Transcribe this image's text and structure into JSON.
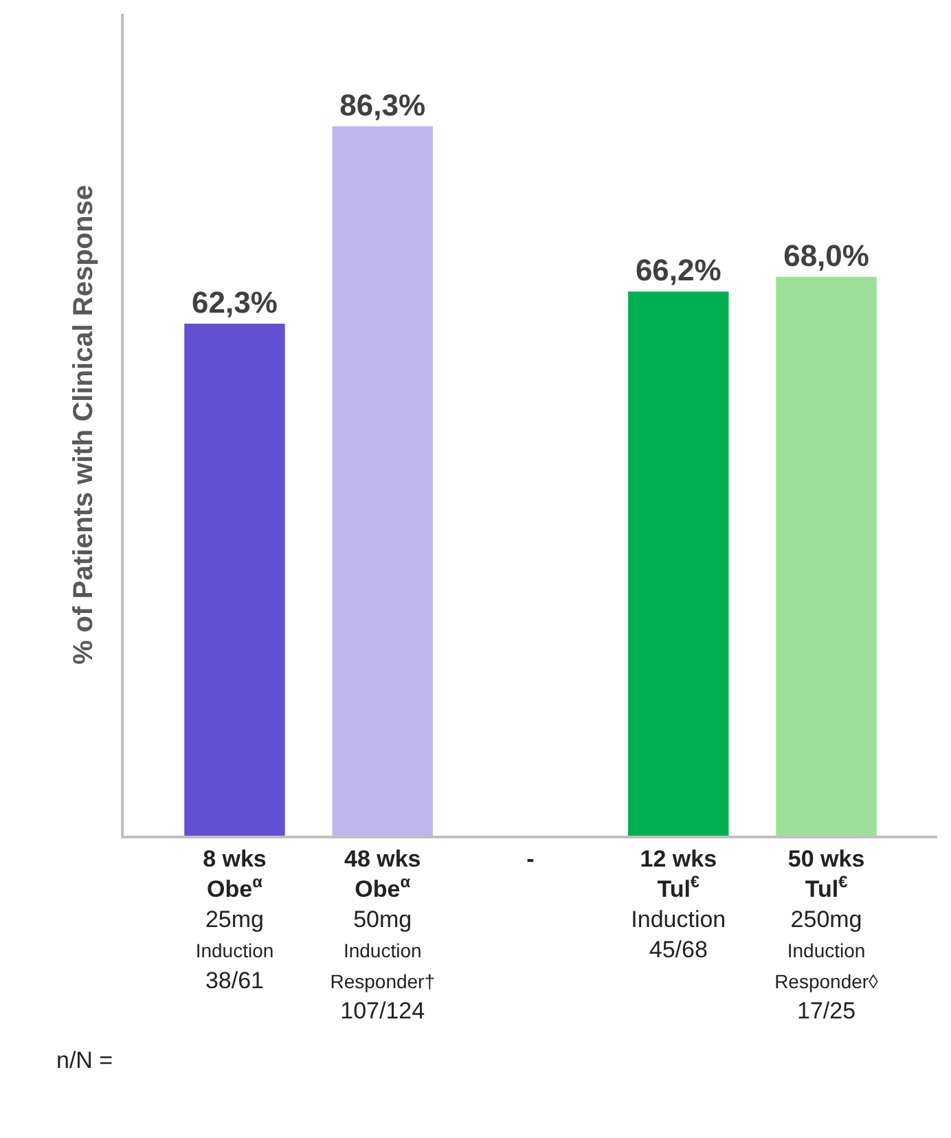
{
  "chart_data": {
    "type": "bar",
    "ylabel": "% of Patients with Clinical Response",
    "categories": [
      "8 wks\nObe$^{α}$\n25mg\nInduction\n38/61",
      "48 wks\nObe$^{α}$\n50mg\nInduction\nResponder†\n107/124",
      "-",
      "12 wks\nTul$^{€}$\nInduction\n45/68",
      "50 wks\nTul$^{€}$\n250mg\nInduction\nResponder◊\n17/25"
    ],
    "values": [
      62.3,
      86.3,
      null,
      66.2,
      68.0
    ],
    "colors": [
      "#634fd2",
      "#bfb6ec",
      "#ffffff",
      "#00b050",
      "#9de09a"
    ],
    "value_labels": [
      "62,3%",
      "86,3%",
      null,
      "66,2%",
      "68,0%"
    ],
    "ylim": [
      0,
      100
    ],
    "tick_labels": "x",
    "legend": false,
    "annotations": [
      "n/N ="
    ]
  }
}
